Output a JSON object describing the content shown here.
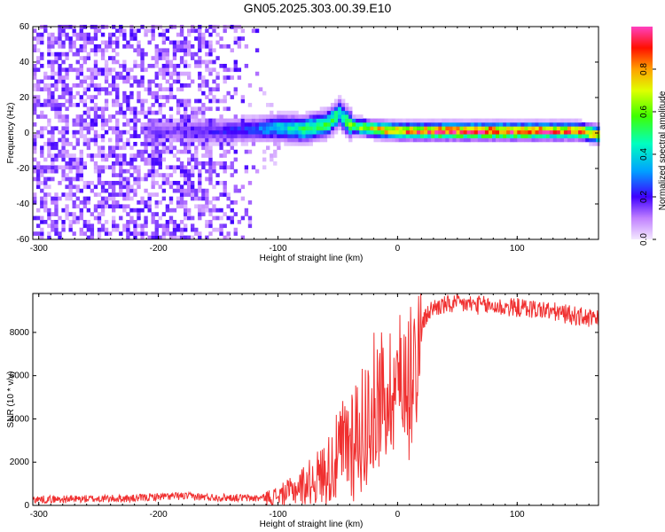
{
  "title": "GN05.2025.303.00.39.E10",
  "chart_data": [
    {
      "type": "heatmap",
      "xlabel": "Height of straight line (km)",
      "ylabel": "Frequency (Hz)",
      "xlim": [
        -305,
        168
      ],
      "ylim": [
        -60,
        60
      ],
      "xticks": [
        -300,
        -200,
        -100,
        0,
        100
      ],
      "yticks": [
        -60,
        -40,
        -20,
        0,
        20,
        40,
        60
      ],
      "colorbar": {
        "label": "Normalized spectral amplitude",
        "range": [
          0,
          1
        ],
        "ticks": [
          0.0,
          0.2,
          0.4,
          0.6,
          0.8
        ],
        "tick_labels": [
          "0.0",
          "0.2",
          "0.4",
          "0.6",
          "0.8"
        ]
      },
      "ridge": {
        "x": [
          -210,
          -180,
          -150,
          -120,
          -100,
          -80,
          -60,
          -50,
          -40,
          -20,
          0,
          50,
          100,
          150,
          168
        ],
        "y": [
          0,
          0,
          0,
          1,
          2,
          1,
          4,
          10,
          3,
          1,
          0,
          0,
          0,
          0,
          -2
        ],
        "amplitude": [
          0.15,
          0.15,
          0.2,
          0.25,
          0.4,
          0.5,
          0.55,
          0.5,
          0.6,
          0.75,
          0.85,
          0.95,
          0.95,
          0.85,
          0.8
        ]
      },
      "noise_region_x": [
        -305,
        -115
      ]
    },
    {
      "type": "line",
      "xlabel": "Height of straight line (km)",
      "ylabel": "SNR (10 * v/v)",
      "xlim": [
        -305,
        168
      ],
      "ylim": [
        0,
        9800
      ],
      "xticks": [
        -300,
        -200,
        -100,
        0,
        100
      ],
      "yticks": [
        0,
        2000,
        4000,
        6000,
        8000
      ],
      "series": [
        {
          "color": "#f03030",
          "x": [
            -305,
            -280,
            -260,
            -240,
            -220,
            -200,
            -180,
            -160,
            -140,
            -120,
            -110,
            -100,
            -90,
            -80,
            -70,
            -60,
            -50,
            -45,
            -40,
            -35,
            -30,
            -25,
            -20,
            -15,
            -10,
            -5,
            0,
            5,
            10,
            15,
            20,
            25,
            30,
            40,
            50,
            60,
            70,
            80,
            90,
            100,
            110,
            120,
            130,
            140,
            150,
            160,
            168
          ],
          "y": [
            300,
            300,
            320,
            330,
            340,
            420,
            450,
            400,
            380,
            350,
            380,
            500,
            700,
            1000,
            1300,
            1700,
            2400,
            2900,
            3300,
            3700,
            3900,
            4300,
            5100,
            5500,
            5300,
            5800,
            6100,
            6400,
            6800,
            7500,
            8300,
            8900,
            9200,
            9300,
            9350,
            9350,
            9300,
            9250,
            9200,
            9200,
            9150,
            9100,
            9000,
            8900,
            8800,
            8700,
            8600
          ]
        }
      ]
    }
  ]
}
